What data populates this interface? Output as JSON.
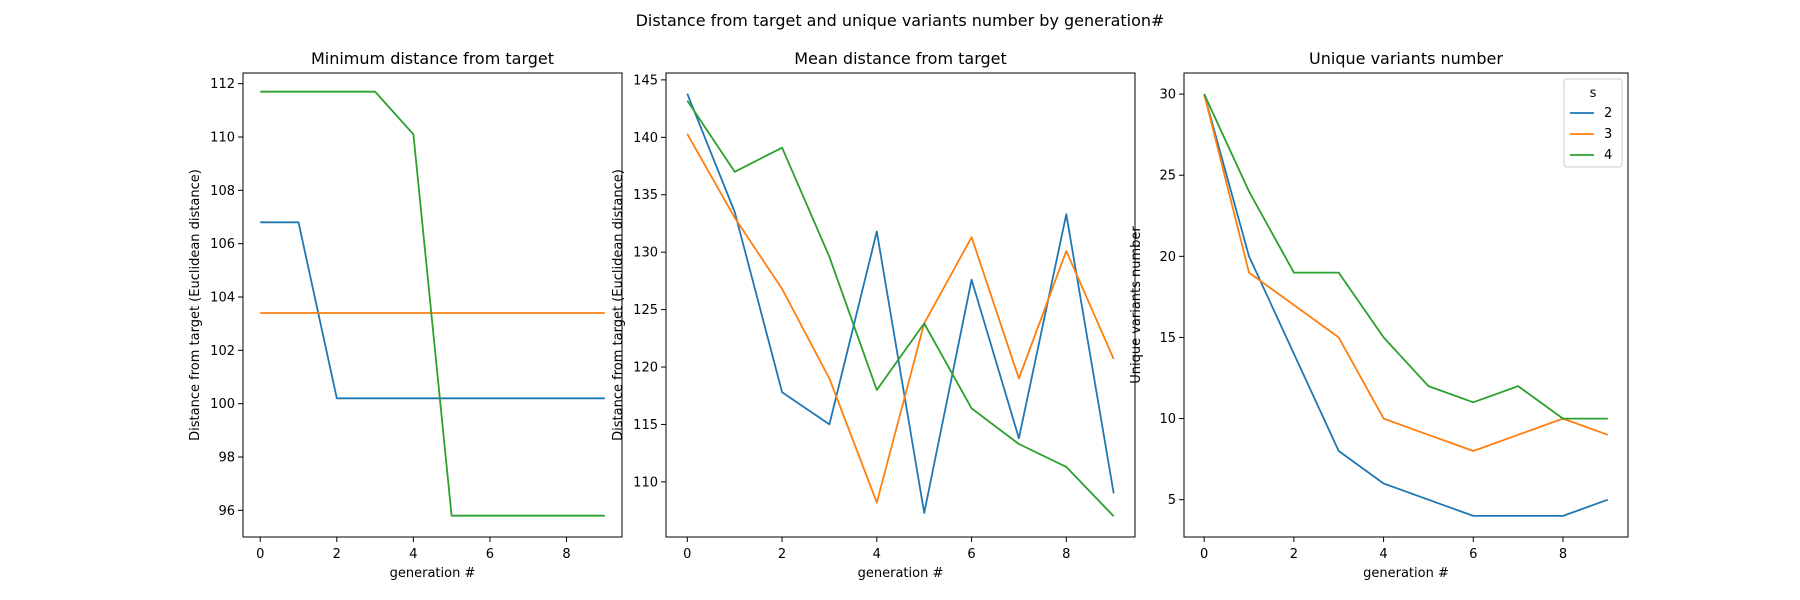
{
  "suptitle": "Distance from target and unique variants number by generation#",
  "chart_data": [
    {
      "type": "line",
      "title": "Minimum distance from target",
      "xlabel": "generation #",
      "ylabel": "Distance from target (Euclidean distance)",
      "x": [
        0,
        1,
        2,
        3,
        4,
        5,
        6,
        7,
        8,
        9
      ],
      "xlim": [
        -0.45,
        9.45
      ],
      "ylim": [
        95.0,
        112.4
      ],
      "xticks": [
        0,
        2,
        4,
        6,
        8
      ],
      "yticks": [
        96,
        98,
        100,
        102,
        104,
        106,
        108,
        110,
        112
      ],
      "series": [
        {
          "name": "2",
          "color": "#1f77b4",
          "values": [
            106.8,
            106.8,
            100.2,
            100.2,
            100.2,
            100.2,
            100.2,
            100.2,
            100.2,
            100.2
          ]
        },
        {
          "name": "3",
          "color": "#ff7f0e",
          "values": [
            103.4,
            103.4,
            103.4,
            103.4,
            103.4,
            103.4,
            103.4,
            103.4,
            103.4,
            103.4
          ]
        },
        {
          "name": "4",
          "color": "#2ca02c",
          "values": [
            111.7,
            111.7,
            111.7,
            111.7,
            110.1,
            95.8,
            95.8,
            95.8,
            95.8,
            95.8
          ]
        }
      ]
    },
    {
      "type": "line",
      "title": "Mean distance from target",
      "xlabel": "generation #",
      "ylabel": "Distance from target (Euclidean distance)",
      "x": [
        0,
        1,
        2,
        3,
        4,
        5,
        6,
        7,
        8,
        9
      ],
      "xlim": [
        -0.45,
        9.45
      ],
      "ylim": [
        105.2,
        145.6
      ],
      "xticks": [
        0,
        2,
        4,
        6,
        8
      ],
      "yticks": [
        110,
        115,
        120,
        125,
        130,
        135,
        140,
        145
      ],
      "series": [
        {
          "name": "2",
          "color": "#1f77b4",
          "values": [
            143.8,
            133.5,
            117.8,
            115.0,
            131.8,
            107.3,
            127.6,
            113.8,
            133.3,
            109.0
          ]
        },
        {
          "name": "3",
          "color": "#ff7f0e",
          "values": [
            140.3,
            133.0,
            126.8,
            119.0,
            108.2,
            123.8,
            131.3,
            119.0,
            130.1,
            120.7
          ]
        },
        {
          "name": "4",
          "color": "#2ca02c",
          "values": [
            143.2,
            137.0,
            139.1,
            129.6,
            118.0,
            123.8,
            116.4,
            113.3,
            111.3,
            107.0
          ]
        }
      ]
    },
    {
      "type": "line",
      "title": "Unique variants number",
      "xlabel": "generation #",
      "ylabel": "Unique variants number",
      "x": [
        0,
        1,
        2,
        3,
        4,
        5,
        6,
        7,
        8,
        9
      ],
      "xlim": [
        -0.45,
        9.45
      ],
      "ylim": [
        2.7,
        31.3
      ],
      "xticks": [
        0,
        2,
        4,
        6,
        8
      ],
      "yticks": [
        5,
        10,
        15,
        20,
        25,
        30
      ],
      "legend": {
        "title": "s",
        "placement": "upper-right"
      },
      "series": [
        {
          "name": "2",
          "color": "#1f77b4",
          "values": [
            30,
            20,
            14,
            8,
            6,
            5,
            4,
            4,
            4,
            5
          ]
        },
        {
          "name": "3",
          "color": "#ff7f0e",
          "values": [
            30,
            19,
            17,
            15,
            10,
            9,
            8,
            9,
            10,
            9
          ]
        },
        {
          "name": "4",
          "color": "#2ca02c",
          "values": [
            30,
            24,
            19,
            19,
            15,
            12,
            11,
            12,
            10,
            10
          ]
        }
      ]
    }
  ]
}
